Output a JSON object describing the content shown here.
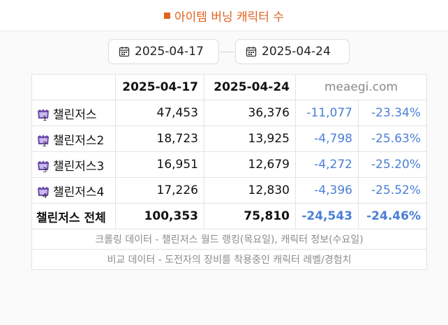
{
  "header": {
    "title": "아이템 버닝 캐릭터 수",
    "accent": "#e0621e"
  },
  "dates": {
    "from": "2025-04-17",
    "to": "2025-04-24"
  },
  "table": {
    "columns": [
      "2025-04-17",
      "2025-04-24",
      "meaegi.com"
    ],
    "rows": [
      {
        "name": "챌린저스",
        "badge": "1",
        "v1": "47,453",
        "v2": "36,376",
        "diff": "-11,077",
        "pct": "-23.34%"
      },
      {
        "name": "챌린저스2",
        "badge": "2",
        "v1": "18,723",
        "v2": "13,925",
        "diff": "-4,798",
        "pct": "-25.63%"
      },
      {
        "name": "챌린저스3",
        "badge": "3",
        "v1": "16,951",
        "v2": "12,679",
        "diff": "-4,272",
        "pct": "-25.20%"
      },
      {
        "name": "챌린저스4",
        "badge": "4",
        "v1": "17,226",
        "v2": "12,830",
        "diff": "-4,396",
        "pct": "-25.52%"
      }
    ],
    "total": {
      "name": "챌린저스 전체",
      "v1": "100,353",
      "v2": "75,810",
      "diff": "-24,543",
      "pct": "-24.46%"
    },
    "notes": [
      "크롤링 데이터 - 챌린저스 월드 랭킹(목요일), 캐릭터 정보(수요일)",
      "비교 데이터 - 도전자의 장비를 착용중인 캐릭터 레벨/경험치"
    ]
  },
  "colors": {
    "negative": "#4a7fd6",
    "site": "#8a8a8a",
    "badge": "#6b4aa8"
  },
  "icons": {
    "date": "calendar-icon",
    "world": "challengers-world-icon"
  }
}
